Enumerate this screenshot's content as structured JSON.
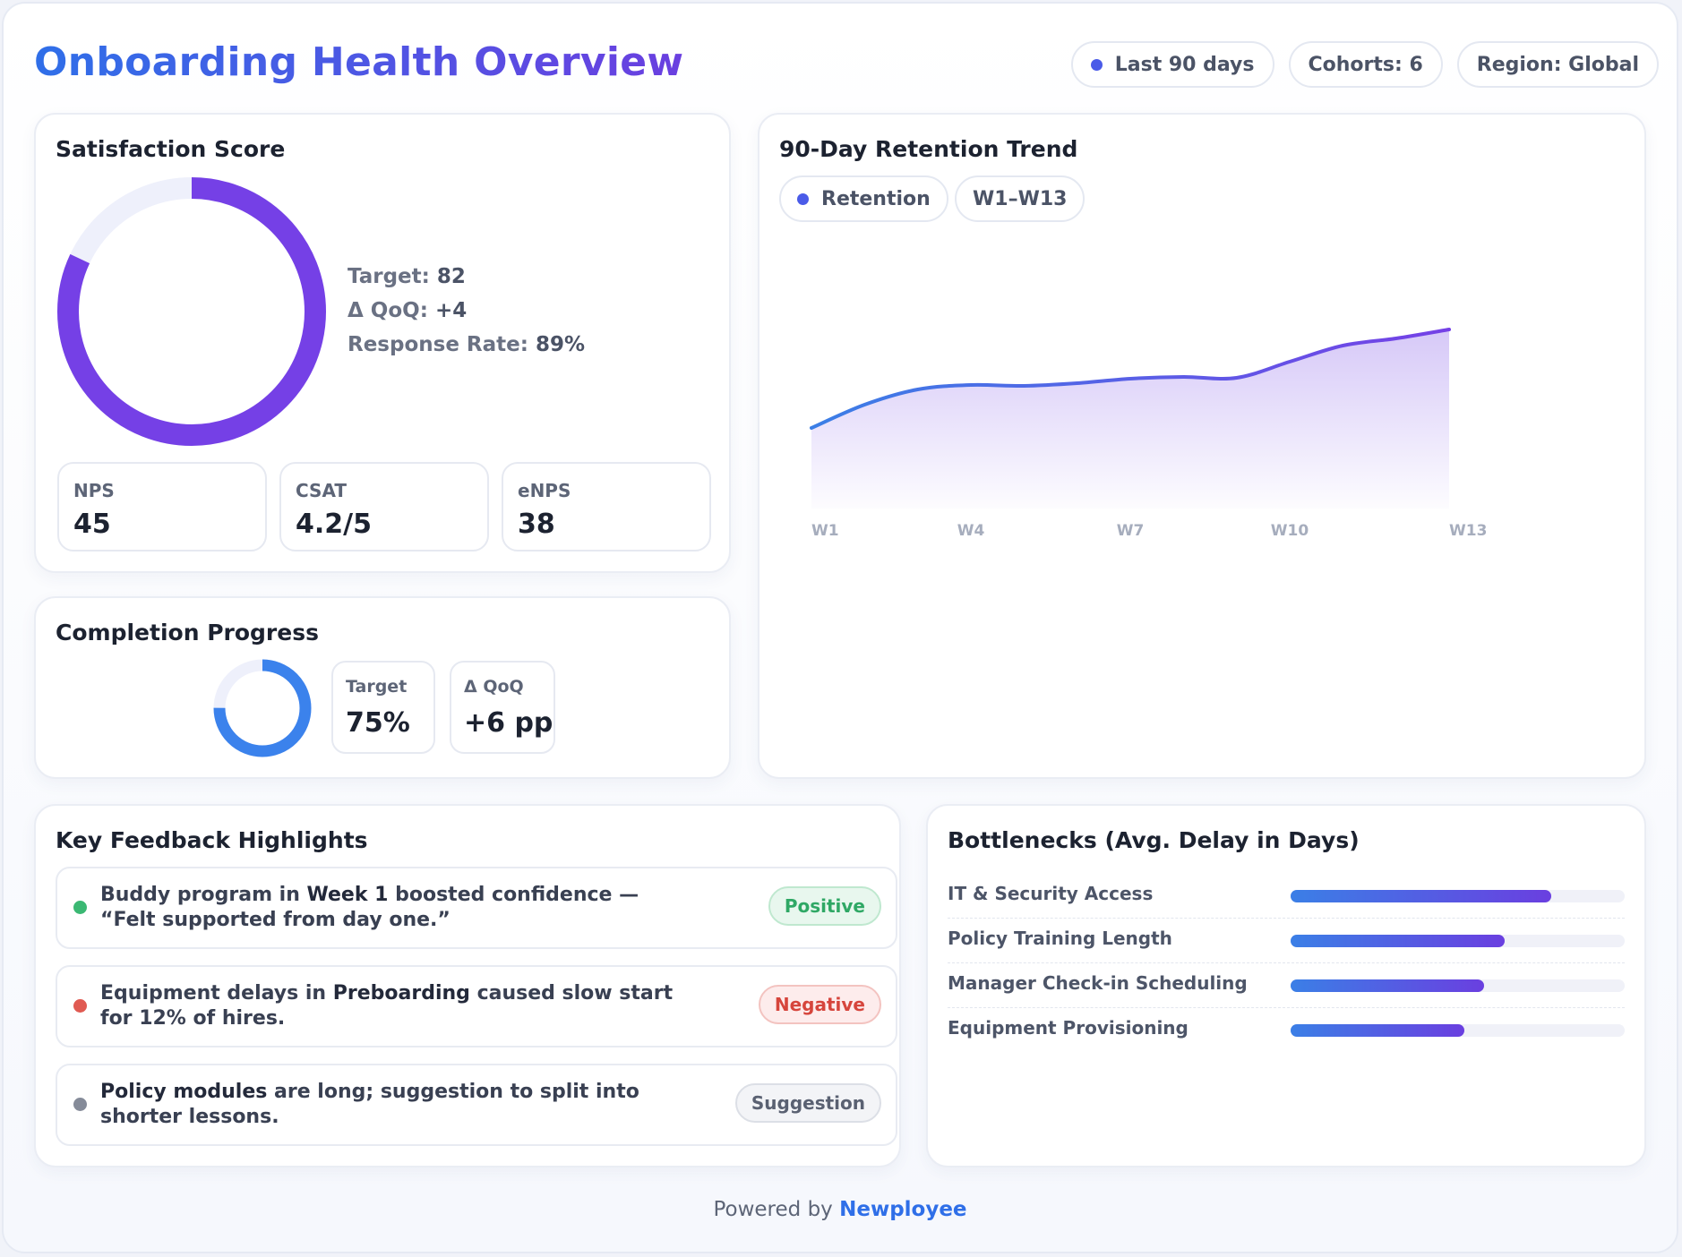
{
  "header": {
    "title": "Onboarding Health Overview",
    "filters": [
      "Last 90 days",
      "Cohorts: 6",
      "Region: Global"
    ]
  },
  "satisfaction": {
    "title": "Satisfaction Score",
    "score_fraction": 0.82,
    "target_label": "Target:",
    "target_value": "82",
    "qoq_label": "Δ QoQ:",
    "qoq_value": "+4",
    "response_label": "Response Rate:",
    "response_value": "89%",
    "metrics": [
      {
        "label": "NPS",
        "value": "45"
      },
      {
        "label": "CSAT",
        "value": "4.2/5"
      },
      {
        "label": "eNPS",
        "value": "38"
      }
    ]
  },
  "completion": {
    "title": "Completion Progress",
    "progress_fraction": 0.75,
    "target_label": "Target",
    "target_value": "75%",
    "qoq_label": "Δ QoQ",
    "qoq_value": "+6 pp"
  },
  "retention": {
    "title": "90-Day Retention Trend",
    "legend_label": "Retention",
    "range_label": "W1–W13"
  },
  "chart_data": {
    "type": "area",
    "title": "90-Day Retention Trend",
    "series": [
      {
        "name": "Retention",
        "values": [
          82,
          84.6,
          86.3,
          86.8,
          86.7,
          87.0,
          87.5,
          87.7,
          87.6,
          89.4,
          91.2,
          92.0,
          93.0
        ]
      }
    ],
    "x": [
      "W1",
      "W2",
      "W3",
      "W4",
      "W5",
      "W6",
      "W7",
      "W8",
      "W9",
      "W10",
      "W11",
      "W12",
      "W13"
    ],
    "tick_labels": [
      "W1",
      "W4",
      "W7",
      "W10",
      "W13"
    ],
    "ylim": [
      75,
      100
    ],
    "xlabel": "",
    "ylabel": "",
    "legend": "top-left",
    "grid": false
  },
  "feedback": {
    "title": "Key Feedback Highlights",
    "items": [
      {
        "pre": "Buddy program in ",
        "em": "Week 1",
        "post": " boosted confidence — “Felt supported from day one.”",
        "tag": "Positive",
        "dot": "#3bb873",
        "tag_bg": "#e8f7ee",
        "tag_border": "#bfe8cf",
        "tag_color": "#2fa865"
      },
      {
        "pre": "Equipment delays in ",
        "em": "Preboarding",
        "post": " caused slow start for 12% of hires.",
        "tag": "Negative",
        "dot": "#e05a52",
        "tag_bg": "#fdecec",
        "tag_border": "#f3c3c0",
        "tag_color": "#d6453c"
      },
      {
        "pre": "",
        "em": "Policy modules",
        "post": " are long; suggestion to split into shorter lessons.",
        "tag": "Suggestion",
        "dot": "#858b99",
        "tag_bg": "#f3f4f7",
        "tag_border": "#dcdfe6",
        "tag_color": "#5a6172"
      }
    ]
  },
  "bottlenecks": {
    "title": "Bottlenecks (Avg. Delay in Days)",
    "items": [
      {
        "label": "IT & Security Access",
        "fraction": 0.78
      },
      {
        "label": "Policy Training Length",
        "fraction": 0.64
      },
      {
        "label": "Manager Check-in Scheduling",
        "fraction": 0.58
      },
      {
        "label": "Equipment Provisioning",
        "fraction": 0.52
      }
    ]
  },
  "footer": {
    "prefix": "Powered by",
    "brand": "Newployee"
  }
}
